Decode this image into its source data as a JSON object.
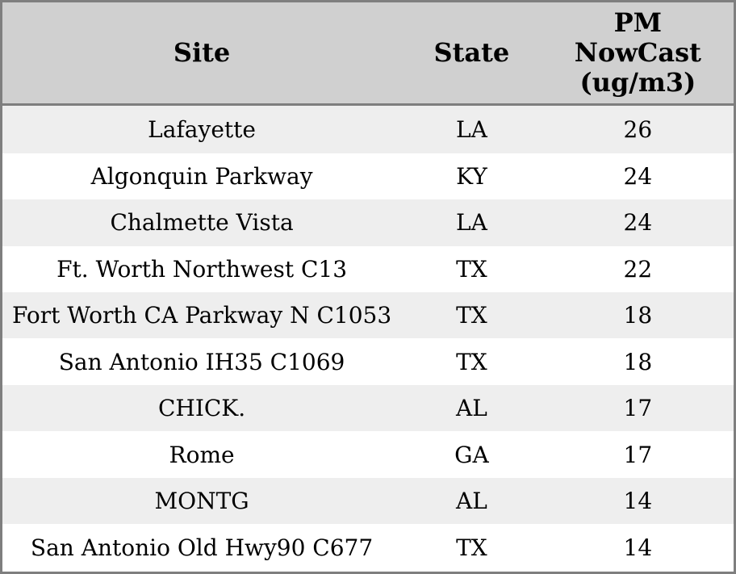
{
  "header": {
    "site": "Site",
    "state": "State",
    "pm": "PM\nNowCast\n(ug/m3)"
  },
  "chart_data": {
    "type": "table",
    "title": "",
    "columns": [
      "Site",
      "State",
      "PM NowCast (ug/m3)"
    ],
    "rows": [
      [
        "Lafayette",
        "LA",
        26
      ],
      [
        "Algonquin Parkway",
        "KY",
        24
      ],
      [
        "Chalmette Vista",
        "LA",
        24
      ],
      [
        "Ft. Worth Northwest C13",
        "TX",
        22
      ],
      [
        "Fort Worth CA Parkway N C1053",
        "TX",
        18
      ],
      [
        "San Antonio IH35 C1069",
        "TX",
        18
      ],
      [
        "CHICK.",
        "AL",
        17
      ],
      [
        "Rome",
        "GA",
        17
      ],
      [
        "MONTG",
        "AL",
        14
      ],
      [
        "San Antonio Old Hwy90 C677",
        "TX",
        14
      ]
    ],
    "layout": {
      "grid": false,
      "striped_rows": true,
      "header_position": "top",
      "column_alignment": [
        "center",
        "center",
        "center"
      ]
    }
  },
  "colors": {
    "header_bg": "#d0d0d0",
    "row_stripe_bg": "#eeeeee",
    "row_bg": "#ffffff",
    "outer_border": "#7f7f7f",
    "header_divider": "#7e7e7e",
    "text": "#000000"
  }
}
